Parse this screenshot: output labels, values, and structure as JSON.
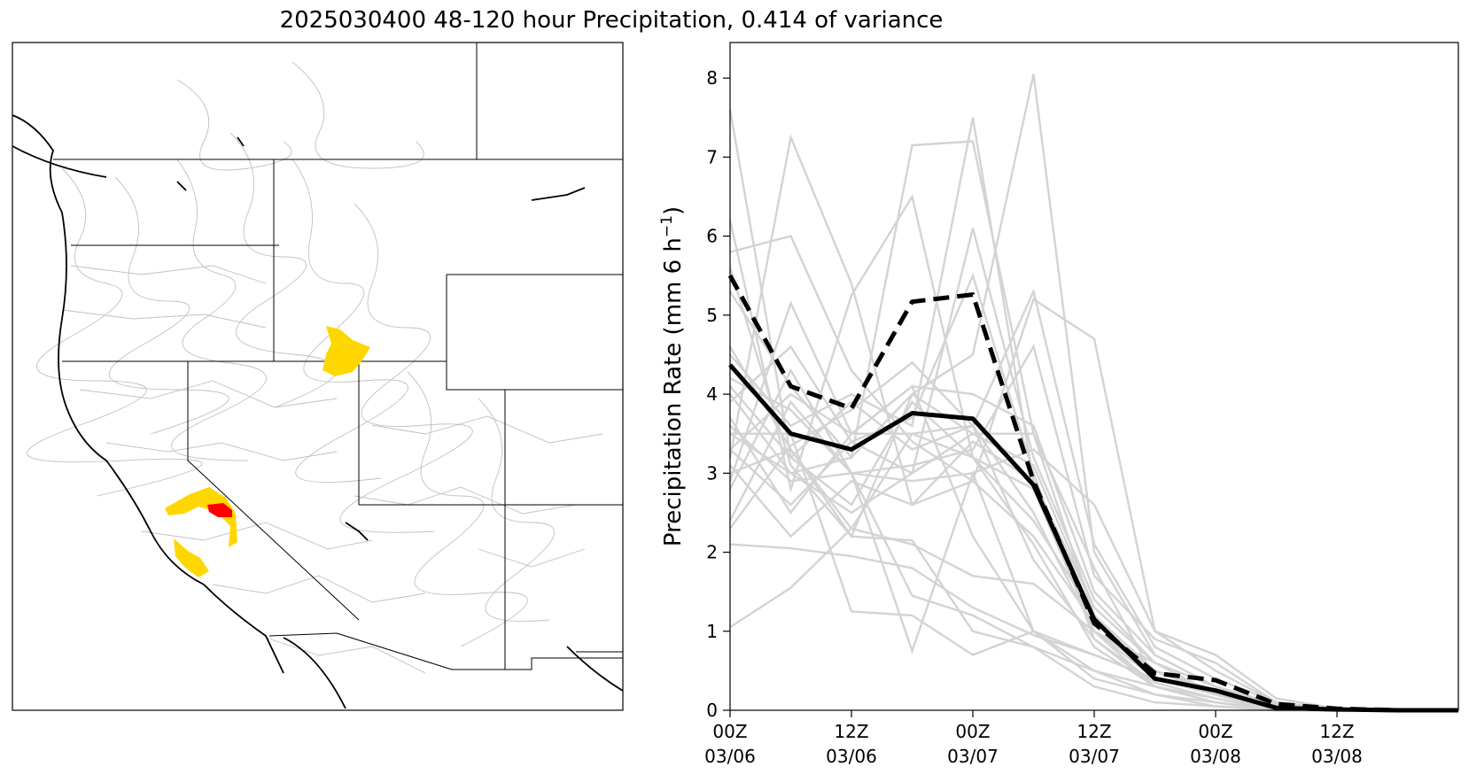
{
  "title": "2025030400 48-120 hour Precipitation, 0.414 of variance",
  "map": {
    "legend_colors": {
      "highlight_primary": "#ff0000",
      "highlight_secondary": "#ffd700",
      "basin_outline": "#c0c0c0",
      "coast": "#000000"
    }
  },
  "chart_data": {
    "type": "line",
    "ylabel": "Precipitation Rate (mm 6 h",
    "ylabel_sup": "−1",
    "ylabel_close": ")",
    "ylim": [
      0,
      8.45
    ],
    "xlim": [
      0,
      12
    ],
    "yticks": [
      "0",
      "1",
      "2",
      "3",
      "4",
      "5",
      "6",
      "7",
      "8"
    ],
    "xticks": [
      {
        "line1": "00Z",
        "line2": "03/06"
      },
      {
        "line1": "12Z",
        "line2": "03/06"
      },
      {
        "line1": "00Z",
        "line2": "03/07"
      },
      {
        "line1": "12Z",
        "line2": "03/07"
      },
      {
        "line1": "00Z",
        "line2": "03/08"
      },
      {
        "line1": "12Z",
        "line2": "03/08"
      }
    ],
    "x": [
      0,
      1,
      2,
      3,
      4,
      5,
      6,
      7,
      8,
      9,
      10,
      11,
      12
    ],
    "series": [
      {
        "style": "solid-black",
        "values": [
          4.37,
          3.5,
          3.3,
          3.76,
          3.69,
          2.85,
          1.15,
          0.4,
          0.25,
          0.03,
          0.01,
          0.0,
          0.0
        ]
      },
      {
        "style": "dashed-black",
        "values": [
          5.5,
          4.1,
          3.82,
          5.17,
          5.26,
          2.9,
          1.1,
          0.47,
          0.38,
          0.08,
          0.02,
          0.0,
          0.0
        ]
      }
    ],
    "members": [
      [
        7.6,
        3.2,
        2.6,
        3.9,
        3.2,
        2.1,
        0.8,
        0.3,
        0.1,
        0.0,
        0.0,
        0.0,
        0.0
      ],
      [
        5.8,
        6.0,
        4.3,
        3.4,
        2.9,
        2.2,
        1.1,
        0.5,
        0.2,
        0.02,
        0.0,
        0.0,
        0.0
      ],
      [
        3.2,
        7.25,
        5.4,
        2.6,
        3.4,
        2.9,
        1.0,
        0.3,
        0.15,
        0.0,
        0.0,
        0.0,
        0.0
      ],
      [
        2.1,
        2.05,
        1.95,
        1.8,
        1.3,
        0.95,
        0.7,
        0.4,
        0.2,
        0.0,
        0.0,
        0.0,
        0.0
      ],
      [
        1.05,
        1.55,
        2.3,
        2.1,
        1.7,
        1.6,
        1.0,
        0.6,
        0.3,
        0.05,
        0.0,
        0.0,
        0.0
      ],
      [
        5.3,
        4.1,
        3.2,
        7.15,
        7.2,
        3.5,
        1.2,
        0.5,
        0.25,
        0.05,
        0.0,
        0.0,
        0.0
      ],
      [
        4.5,
        3.6,
        4.0,
        3.6,
        7.5,
        2.9,
        1.3,
        0.6,
        0.3,
        0.08,
        0.0,
        0.0,
        0.0
      ],
      [
        3.5,
        3.0,
        3.2,
        4.0,
        4.5,
        8.05,
        2.0,
        0.7,
        0.3,
        0.05,
        0.0,
        0.0,
        0.0
      ],
      [
        6.2,
        2.8,
        5.25,
        6.5,
        3.2,
        2.8,
        1.0,
        0.4,
        0.2,
        0.0,
        0.0,
        0.0,
        0.0
      ],
      [
        2.4,
        3.9,
        3.0,
        0.75,
        3.0,
        1.0,
        0.5,
        0.2,
        0.1,
        0.0,
        0.0,
        0.0,
        0.0
      ],
      [
        3.1,
        2.2,
        2.9,
        2.6,
        2.9,
        5.2,
        4.7,
        1.0,
        0.5,
        0.1,
        0.02,
        0.0,
        0.0
      ],
      [
        4.0,
        3.0,
        2.5,
        3.0,
        6.1,
        3.2,
        1.4,
        0.6,
        0.3,
        0.05,
        0.0,
        0.0,
        0.0
      ],
      [
        2.3,
        3.35,
        3.8,
        4.4,
        3.6,
        5.3,
        2.1,
        0.8,
        0.4,
        0.1,
        0.0,
        0.0,
        0.0
      ],
      [
        3.7,
        2.5,
        3.5,
        4.1,
        2.2,
        1.0,
        0.7,
        0.4,
        0.2,
        0.0,
        0.0,
        0.0,
        0.0
      ],
      [
        5.6,
        3.1,
        2.2,
        2.15,
        1.0,
        0.8,
        0.5,
        0.3,
        0.1,
        0.0,
        0.0,
        0.0,
        0.0
      ],
      [
        3.5,
        3.5,
        1.25,
        1.2,
        0.7,
        1.0,
        0.4,
        0.2,
        0.05,
        0.0,
        0.0,
        0.0,
        0.0
      ],
      [
        2.8,
        4.3,
        3.0,
        3.1,
        3.3,
        4.6,
        1.7,
        0.9,
        0.6,
        0.1,
        0.0,
        0.0,
        0.0
      ],
      [
        4.2,
        3.8,
        3.0,
        2.9,
        3.0,
        3.3,
        2.6,
        1.0,
        0.7,
        0.15,
        0.02,
        0.0,
        0.0
      ],
      [
        3.0,
        3.3,
        2.3,
        3.5,
        3.6,
        2.5,
        1.0,
        0.5,
        0.2,
        0.0,
        0.0,
        0.0,
        0.0
      ],
      [
        3.9,
        4.6,
        3.4,
        3.7,
        5.5,
        3.0,
        0.9,
        0.35,
        0.15,
        0.0,
        0.0,
        0.0,
        0.0
      ],
      [
        3.3,
        4.0,
        3.5,
        4.1,
        4.0,
        3.6,
        1.5,
        0.7,
        0.3,
        0.05,
        0.0,
        0.0,
        0.0
      ],
      [
        4.6,
        3.3,
        2.2,
        4.0,
        3.5,
        3.5,
        1.8,
        0.4,
        0.2,
        0.0,
        0.0,
        0.0,
        0.0
      ],
      [
        2.9,
        5.15,
        3.5,
        3.5,
        3.2,
        2.4,
        1.2,
        0.5,
        0.2,
        0.03,
        0.0,
        0.0,
        0.0
      ],
      [
        3.6,
        2.9,
        3.0,
        1.45,
        1.2,
        0.8,
        0.3,
        0.1,
        0.05,
        0.0,
        0.0,
        0.0,
        0.0
      ],
      [
        4.1,
        3.2,
        3.9,
        3.3,
        3.6,
        1.9,
        0.9,
        0.3,
        0.1,
        0.0,
        0.0,
        0.0,
        0.0
      ],
      [
        3.3,
        2.6,
        3.4,
        3.0,
        3.5,
        3.1,
        1.3,
        0.6,
        0.2,
        0.0,
        0.0,
        0.0,
        0.0
      ]
    ],
    "colors": {
      "member": "#d3d3d3",
      "mean": "#000000"
    },
    "grid": false
  }
}
